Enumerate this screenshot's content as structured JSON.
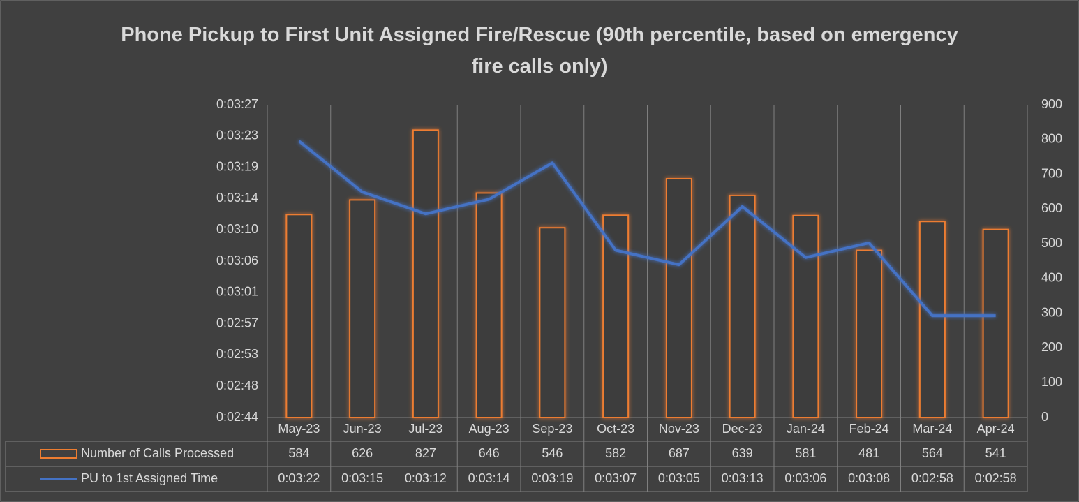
{
  "chart_data": {
    "type": "bar",
    "title": "Phone Pickup to First Unit Assigned Fire/Rescue (90th percentile, based on emergency fire calls only)",
    "categories": [
      "May-23",
      "Jun-23",
      "Jul-23",
      "Aug-23",
      "Sep-23",
      "Oct-23",
      "Nov-23",
      "Dec-23",
      "Jan-24",
      "Feb-24",
      "Mar-24",
      "Apr-24"
    ],
    "series": [
      {
        "name": "Number of Calls Processed",
        "type": "bar",
        "axis": "y2",
        "color": "#ed7d31",
        "values": [
          584,
          626,
          827,
          646,
          546,
          582,
          687,
          639,
          581,
          481,
          564,
          541
        ]
      },
      {
        "name": "PU to 1st Assigned Time",
        "type": "line",
        "color": "#4472c4",
        "values": [
          202,
          195,
          192,
          194,
          199,
          187,
          185,
          193,
          186,
          188,
          178,
          178
        ],
        "value_labels": [
          "0:03:22",
          "0:03:15",
          "0:03:12",
          "0:03:14",
          "0:03:19",
          "0:03:07",
          "0:03:05",
          "0:03:13",
          "0:03:06",
          "0:03:08",
          "0:02:58",
          "0:02:58"
        ]
      }
    ],
    "ylim": [
      164,
      207
    ],
    "yticks": [
      {
        "value": 164,
        "label": "0:02:44"
      },
      {
        "value": 168.3,
        "label": "0:02:48"
      },
      {
        "value": 172.6,
        "label": "0:02:53"
      },
      {
        "value": 176.9,
        "label": "0:02:57"
      },
      {
        "value": 181.2,
        "label": "0:03:01"
      },
      {
        "value": 185.5,
        "label": "0:03:06"
      },
      {
        "value": 189.8,
        "label": "0:03:10"
      },
      {
        "value": 194.1,
        "label": "0:03:14"
      },
      {
        "value": 198.4,
        "label": "0:03:19"
      },
      {
        "value": 202.7,
        "label": "0:03:23"
      },
      {
        "value": 207,
        "label": "0:03:27"
      }
    ],
    "y2lim": [
      0,
      900
    ],
    "y2ticks": [
      0,
      100,
      200,
      300,
      400,
      500,
      600,
      700,
      800,
      900
    ]
  }
}
